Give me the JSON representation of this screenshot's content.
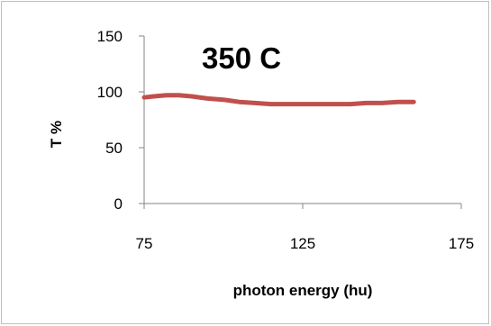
{
  "chart_data": {
    "type": "line",
    "title": "350 C",
    "xlabel": "photon energy (hu)",
    "ylabel": "T %",
    "xlim": [
      75,
      175
    ],
    "ylim": [
      0,
      150
    ],
    "xticks": [
      "75",
      "125",
      "175"
    ],
    "yticks": [
      "0",
      "50",
      "100",
      "150"
    ],
    "grid": false,
    "legend": "none",
    "series": [
      {
        "color": "#c0504d",
        "x": [
          75,
          78,
          82,
          86,
          90,
          95,
          100,
          105,
          110,
          115,
          120,
          125,
          130,
          135,
          140,
          145,
          150,
          155,
          160
        ],
        "y": [
          95,
          96,
          97,
          97,
          96,
          94,
          93,
          91,
          90,
          89,
          89,
          89,
          89,
          89,
          89,
          90,
          90,
          91,
          91
        ]
      }
    ]
  }
}
